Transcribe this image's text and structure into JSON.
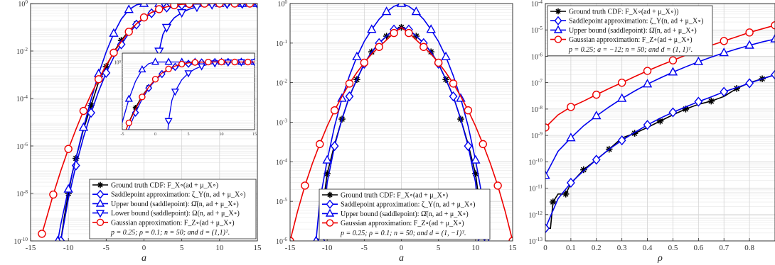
{
  "chart_data": [
    {
      "type": "line",
      "xlabel": "a",
      "yscale": "log",
      "xlim": [
        -15,
        15
      ],
      "ylim": [
        1e-10,
        1
      ],
      "x_ticks": [
        "-15",
        "-10",
        "-5",
        "0",
        "5",
        "10",
        "15"
      ],
      "y_ticks": [
        "10^{-10}",
        "10^{-8}",
        "10^{-6}",
        "10^{-4}",
        "10^{-2}",
        "10^{0}"
      ],
      "grid": true,
      "legend_position": "bottom-right",
      "legend": [
        {
          "label": "Ground truth CDF: F_X∘(ad + μ_X∘)",
          "color": "#000000",
          "marker": "asterisk"
        },
        {
          "label": "Saddlepoint approximation: ζ_Y(n, ad + μ_X∘)",
          "color": "#0000ee",
          "marker": "diamond"
        },
        {
          "label": "Upper bound (saddlepoint): Ω̄(n, ad + μ_X∘)",
          "color": "#0000ee",
          "marker": "triangle-up"
        },
        {
          "label": "Lower bound (saddlepoint): Ω(n, ad + μ_X∘)",
          "color": "#0000ee",
          "marker": "triangle-down"
        },
        {
          "label": "Gaussian approximation: F_Z∘(ad + μ_X∘)",
          "color": "#ee0000",
          "marker": "circle"
        }
      ],
      "note": "p = 0.25; ρ = 0.1; n = 50; and d = (1,1)ᵀ.",
      "series": [
        {
          "name": "Ground truth CDF",
          "x": [
            -11,
            -10.5,
            -10,
            -9.5,
            -9,
            -8,
            -7,
            -6,
            -5,
            -4,
            -3,
            -2,
            -1,
            0,
            1,
            2,
            3,
            4,
            5,
            6,
            7,
            8,
            9,
            10,
            11,
            12,
            13,
            14,
            15
          ],
          "y": [
            1e-10,
            1.2e-09,
            1e-08,
            7e-08,
            3e-07,
            5e-06,
            5e-05,
            0.0005,
            0.0022,
            0.009,
            0.028,
            0.07,
            0.14,
            0.26,
            0.4,
            0.55,
            0.68,
            0.79,
            0.87,
            0.93,
            0.96,
            0.985,
            0.994,
            0.998,
            0.999,
            1,
            1,
            1,
            1
          ]
        },
        {
          "name": "Saddlepoint approximation",
          "x": [
            -11,
            -10,
            -9,
            -8,
            -7,
            -6,
            -5,
            -4,
            -3,
            -2,
            -1,
            0,
            1,
            2,
            3,
            4,
            5,
            6,
            7,
            8,
            9,
            10,
            11,
            12,
            13,
            14,
            15
          ],
          "y": [
            1e-10,
            6e-09,
            1.5e-07,
            2.3e-06,
            2.5e-05,
            0.0002,
            0.0012,
            0.0055,
            0.019,
            0.055,
            0.13,
            0.24,
            0.39,
            0.54,
            0.68,
            0.79,
            0.87,
            0.93,
            0.965,
            0.985,
            0.994,
            0.998,
            0.999,
            1,
            1,
            1,
            1
          ]
        },
        {
          "name": "Upper bound (saddlepoint)",
          "x": [
            -11.4,
            -11,
            -10,
            -9,
            -8,
            -7,
            -6,
            -5,
            -4,
            -3,
            -2,
            -1,
            0,
            1,
            2,
            3,
            4,
            5,
            6,
            8,
            10,
            12,
            13,
            14,
            15
          ],
          "y": [
            1e-10,
            5e-10,
            1.5e-08,
            3e-07,
            6e-06,
            9e-05,
            0.0011,
            0.009,
            0.055,
            0.22,
            0.55,
            0.88,
            1,
            1,
            1,
            1,
            1,
            1,
            1,
            1,
            1,
            1,
            1,
            1,
            1
          ]
        },
        {
          "name": "Lower bound (saddlepoint)",
          "x": [
            1.5,
            1.7,
            2,
            2.5,
            3,
            4,
            5,
            6,
            7,
            8,
            9,
            10,
            11,
            12,
            13,
            14,
            15
          ],
          "y": [
            0.0001,
            0.001,
            0.01,
            0.05,
            0.1,
            0.25,
            0.42,
            0.58,
            0.72,
            0.83,
            0.91,
            0.95,
            0.975,
            0.99,
            0.995,
            0.998,
            0.999
          ]
        },
        {
          "name": "Gaussian approximation",
          "x": [
            -13.5,
            -13,
            -12,
            -11,
            -10,
            -9,
            -8,
            -7,
            -6,
            -5,
            -4,
            -3,
            -2,
            -1,
            0,
            1,
            2,
            3,
            4,
            5,
            6,
            7,
            8,
            9,
            10,
            11,
            12,
            13,
            14,
            15
          ],
          "y": [
            2e-10,
            7e-10,
            9e-09,
            9e-08,
            7.5e-07,
            5e-06,
            3e-05,
            0.00015,
            0.00065,
            0.0025,
            0.0085,
            0.025,
            0.065,
            0.14,
            0.26,
            0.42,
            0.58,
            0.73,
            0.85,
            0.93,
            0.97,
            0.99,
            0.996,
            0.999,
            1,
            1,
            1,
            1,
            1,
            1
          ]
        }
      ],
      "inset": {
        "xlim": [
          -5,
          15
        ],
        "x_ticks": [
          "-5",
          "0",
          "5",
          "10",
          "15"
        ],
        "y_ticks": [
          "10^{0}"
        ],
        "ylim": [
          0.005,
          2
        ]
      }
    },
    {
      "type": "line",
      "xlabel": "a",
      "yscale": "log",
      "xlim": [
        -15,
        15
      ],
      "ylim": [
        1e-06,
        1
      ],
      "x_ticks": [
        "-15",
        "-10",
        "-5",
        "0",
        "5",
        "10",
        "15"
      ],
      "y_ticks": [
        "10^{-6}",
        "10^{-5}",
        "10^{-4}",
        "10^{-3}",
        "10^{-2}",
        "10^{-1}",
        "10^{0}"
      ],
      "grid": true,
      "legend_position": "bottom-right",
      "legend": [
        {
          "label": "Ground truth CDF: F_X∘(ad + μ_X∘)",
          "color": "#000000",
          "marker": "asterisk"
        },
        {
          "label": "Saddlepoint approximation: ζ_Y(n, ad + μ_X∘)",
          "color": "#0000ee",
          "marker": "diamond"
        },
        {
          "label": "Upper bound (saddlepoint): Ω̄(n, ad + μ_X∘)",
          "color": "#0000ee",
          "marker": "triangle-up"
        },
        {
          "label": "Gaussian approximation: F_Z∘(ad + μ_X∘)",
          "color": "#ee0000",
          "marker": "circle"
        }
      ],
      "note": "p = 0.25; ρ = 0.1; n = 50; and d = (1, −1)ᵀ.",
      "series": [
        {
          "name": "Ground truth CDF",
          "x": [
            -11,
            -10.5,
            -10,
            -9,
            -8,
            -7,
            -6,
            -5,
            -4,
            -3,
            -2,
            -1,
            0,
            1,
            2,
            3,
            4,
            5,
            6,
            7,
            8,
            9,
            10,
            10.5,
            11
          ],
          "y": [
            1e-06,
            1e-05,
            5e-05,
            0.00028,
            0.0012,
            0.0045,
            0.012,
            0.03,
            0.06,
            0.1,
            0.15,
            0.22,
            0.25,
            0.22,
            0.15,
            0.1,
            0.06,
            0.03,
            0.012,
            0.0045,
            0.0012,
            0.00028,
            5e-05,
            1e-05,
            1e-06
          ]
        },
        {
          "name": "Saddlepoint approximation",
          "x": [
            -10.8,
            -10,
            -9,
            -8,
            -7,
            -6,
            -5,
            -4,
            -3,
            -2,
            -1,
            0,
            1,
            2,
            3,
            4,
            5,
            6,
            7,
            8,
            9,
            10,
            10.8
          ],
          "y": [
            1e-06,
            3e-05,
            0.00025,
            0.0012,
            0.0045,
            0.012,
            0.03,
            0.06,
            0.1,
            0.15,
            0.22,
            0.25,
            0.22,
            0.15,
            0.1,
            0.06,
            0.03,
            0.012,
            0.0045,
            0.0012,
            0.00025,
            3e-05,
            1e-06
          ]
        },
        {
          "name": "Upper bound (saddlepoint)",
          "x": [
            -11.5,
            -11,
            -10,
            -9,
            -8,
            -7,
            -6,
            -5,
            -4,
            -3,
            -2,
            -1,
            0,
            1,
            2,
            3,
            4,
            5,
            6,
            7,
            8,
            9,
            10,
            11,
            11.5
          ],
          "y": [
            1e-06,
            1e-05,
            0.00011,
            0.0008,
            0.004,
            0.015,
            0.045,
            0.11,
            0.22,
            0.4,
            0.62,
            0.85,
            1,
            0.85,
            0.62,
            0.4,
            0.22,
            0.11,
            0.045,
            0.015,
            0.004,
            0.0008,
            0.00011,
            1e-05,
            1e-06
          ]
        },
        {
          "name": "Gaussian approximation",
          "x": [
            -15,
            -14,
            -13,
            -12,
            -11,
            -10,
            -9,
            -8,
            -7,
            -6,
            -5,
            -4,
            -3,
            -2,
            -1,
            0,
            1,
            2,
            3,
            4,
            5,
            6,
            7,
            8,
            9,
            10,
            11,
            12,
            13,
            14,
            15
          ],
          "y": [
            1e-06,
            5.5e-06,
            2.5e-05,
            9e-05,
            0.00028,
            0.0008,
            0.002,
            0.0045,
            0.0095,
            0.018,
            0.032,
            0.053,
            0.08,
            0.12,
            0.18,
            0.25,
            0.18,
            0.12,
            0.08,
            0.053,
            0.032,
            0.018,
            0.0095,
            0.0045,
            0.002,
            0.0008,
            0.00028,
            9e-05,
            2.5e-05,
            5.5e-06,
            1e-06
          ]
        }
      ]
    },
    {
      "type": "line",
      "xlabel": "ρ",
      "yscale": "log",
      "xlim": [
        0,
        0.9
      ],
      "ylim": [
        1e-13,
        0.0001
      ],
      "x_ticks": [
        "0",
        "0.1",
        "0.2",
        "0.3",
        "0.4",
        "0.5",
        "0.6",
        "0.7",
        "0.8"
      ],
      "y_ticks": [
        "10^{-13}",
        "10^{-12}",
        "10^{-11}",
        "10^{-10}",
        "10^{-9}",
        "10^{-8}",
        "10^{-7}",
        "10^{-6}",
        "10^{-5}",
        "10^{-4}"
      ],
      "grid": true,
      "legend_position": "top-left",
      "legend": [
        {
          "label": "Ground truth CDF: F_X∘(ad + μ_X∘))",
          "color": "#000000",
          "marker": "asterisk"
        },
        {
          "label": "Saddlepoint approximation: ζ_Y(n, ad + μ_X∘)",
          "color": "#0000ee",
          "marker": "diamond"
        },
        {
          "label": "Upper bound (saddlepoint): Ω̄(n, ad + μ_X∘)",
          "color": "#0000ee",
          "marker": "triangle-up"
        },
        {
          "label": "Gaussian approximation: F_Z∘(ad + μ_X∘)",
          "color": "#ee0000",
          "marker": "circle"
        }
      ],
      "note": "p = 0.25; a = −12; n = 50; and d = (1, 1)ᵀ.",
      "series": [
        {
          "name": "Ground truth CDF",
          "x": [
            0,
            0.02,
            0.03,
            0.05,
            0.08,
            0.1,
            0.15,
            0.2,
            0.25,
            0.3,
            0.35,
            0.4,
            0.45,
            0.5,
            0.55,
            0.6,
            0.65,
            0.7,
            0.75,
            0.8,
            0.85,
            0.9
          ],
          "y": [
            3e-13,
            3e-13,
            3e-12,
            6e-12,
            6e-12,
            1.5e-11,
            5e-11,
            1.2e-10,
            3e-10,
            8e-10,
            1.2e-09,
            2e-09,
            3.5e-09,
            6e-09,
            1e-08,
            1.5e-08,
            2e-08,
            3e-08,
            6e-08,
            1e-07,
            1.4e-07,
            2e-07
          ]
        },
        {
          "name": "Saddlepoint approximation",
          "x": [
            0,
            0.05,
            0.1,
            0.15,
            0.2,
            0.25,
            0.3,
            0.35,
            0.4,
            0.45,
            0.5,
            0.55,
            0.6,
            0.65,
            0.7,
            0.75,
            0.8,
            0.85,
            0.9
          ],
          "y": [
            3e-13,
            4e-12,
            1.6e-11,
            4.5e-11,
            1.2e-10,
            3e-10,
            6.5e-10,
            1.3e-09,
            2.5e-09,
            4.5e-09,
            7.5e-09,
            1.2e-08,
            1.9e-08,
            2.9e-08,
            4.5e-08,
            6.5e-08,
            9.5e-08,
            1.4e-07,
            2e-07
          ]
        },
        {
          "name": "Upper bound (saddlepoint)",
          "x": [
            0,
            0.05,
            0.1,
            0.15,
            0.2,
            0.25,
            0.3,
            0.35,
            0.4,
            0.45,
            0.5,
            0.55,
            0.6,
            0.65,
            0.7,
            0.75,
            0.8,
            0.85,
            0.9
          ],
          "y": [
            3e-11,
            2.5e-10,
            8e-10,
            2.3e-09,
            5.5e-09,
            1.2e-08,
            2.5e-08,
            4.8e-08,
            8.8e-08,
            1.5e-07,
            2.5e-07,
            4e-07,
            6.2e-07,
            9.3e-07,
            1.35e-06,
            1.9e-06,
            2.6e-06,
            3.5e-06,
            4.5e-06
          ]
        },
        {
          "name": "Gaussian approximation",
          "x": [
            0,
            0.05,
            0.1,
            0.15,
            0.2,
            0.25,
            0.3,
            0.35,
            0.4,
            0.45,
            0.5,
            0.55,
            0.6,
            0.65,
            0.7,
            0.75,
            0.8,
            0.85,
            0.9
          ],
          "y": [
            2e-09,
            6e-09,
            1.2e-08,
            2e-08,
            3.5e-08,
            6e-08,
            1e-07,
            1.7e-07,
            2.8e-07,
            4.5e-07,
            7e-07,
            1.1e-06,
            1.7e-06,
            2.6e-06,
            3.8e-06,
            5.5e-06,
            8e-06,
            1.1e-05,
            1.5e-05
          ]
        }
      ]
    }
  ]
}
